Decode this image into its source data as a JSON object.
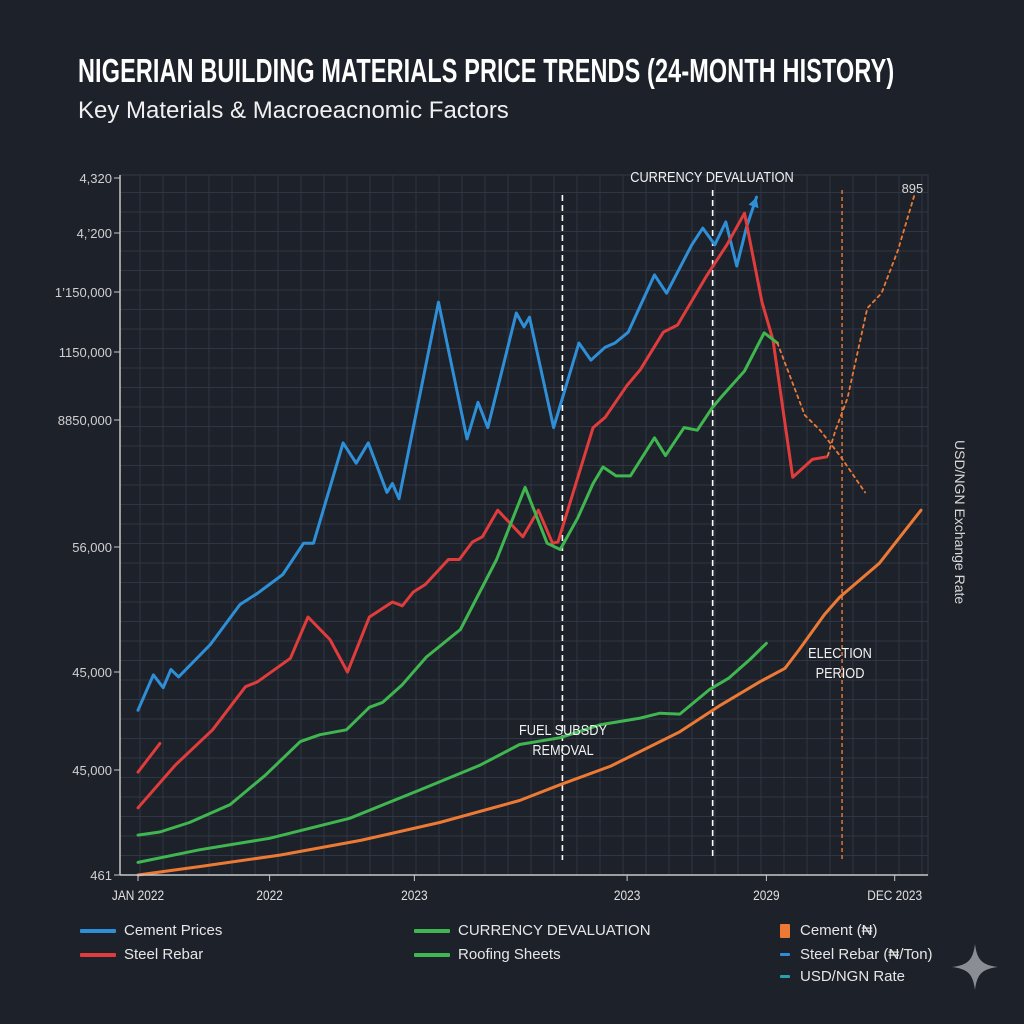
{
  "title": "NIGERIAN BUILDING MATERIALS PRICE TRENDS (24-MONTH HISTORY)",
  "subtitle": "Key Materials & Macroeacnomic Factors",
  "chart_data": {
    "type": "line",
    "title": "NIGERIAN BUILDING MATERIALS PRICE TRENDS (24-MONTH HISTORY)",
    "subtitle": "Key Materials & Macroeacnomic Factors",
    "y_axis_note": "y values are given as positions along the printed (non-monotonic) tick sequence: 0 = first tick, 1 = second tick, etc.",
    "y_ticks": [
      "461",
      "45,000",
      "45,000",
      "56,000",
      "8850,000",
      "1150,000",
      "1’150,000",
      "4,’200",
      "4,320"
    ],
    "right_ylabel": "USD/NGN Exchange Rate",
    "x_ticks": [
      {
        "label": "JAN 2022",
        "at": "2022-01-01"
      },
      {
        "label": "2022",
        "at": "2022-05-01"
      },
      {
        "label": "2023",
        "at": "2022-09-13"
      },
      {
        "label": "2023",
        "at": "2023-03-27"
      },
      {
        "label": "2029",
        "at": "2023-08-04"
      },
      {
        "label": "DEC 2023",
        "at": "2023-12-01"
      }
    ],
    "grid": true,
    "legend_placement": "bottom",
    "series": [
      {
        "name": "Cement Prices",
        "color": "#2f8fd6",
        "style": "solid",
        "arrow": true,
        "points": [
          [
            "2022-01-01",
            1.61
          ],
          [
            "2022-01-15",
            1.97
          ],
          [
            "2022-01-24",
            1.84
          ],
          [
            "2022-02-01",
            2.02
          ],
          [
            "2022-02-08",
            1.95
          ],
          [
            "2022-03-07",
            2.22
          ],
          [
            "2022-04-04",
            2.54
          ],
          [
            "2022-04-20",
            2.63
          ],
          [
            "2022-05-13",
            2.78
          ],
          [
            "2022-06-02",
            3.03
          ],
          [
            "2022-06-11",
            3.03
          ],
          [
            "2022-07-08",
            3.82
          ],
          [
            "2022-07-20",
            3.66
          ],
          [
            "2022-08-01",
            3.82
          ],
          [
            "2022-08-18",
            3.43
          ],
          [
            "2022-08-23",
            3.5
          ],
          [
            "2022-08-29",
            3.38
          ],
          [
            "2022-10-05",
            5.83
          ],
          [
            "2022-11-01",
            3.85
          ],
          [
            "2022-11-11",
            4.26
          ],
          [
            "2022-11-20",
            3.94
          ],
          [
            "2022-12-16",
            5.65
          ],
          [
            "2022-12-23",
            5.42
          ],
          [
            "2022-12-28",
            5.58
          ],
          [
            "2023-01-20",
            3.94
          ],
          [
            "2023-02-13",
            5.15
          ],
          [
            "2023-02-24",
            4.88
          ],
          [
            "2023-03-07",
            5.08
          ],
          [
            "2023-03-16",
            5.15
          ],
          [
            "2023-03-28",
            5.33
          ],
          [
            "2023-04-22",
            6.29
          ],
          [
            "2023-05-03",
            5.98
          ],
          [
            "2023-05-26",
            6.8
          ],
          [
            "2023-06-06",
            7.09
          ],
          [
            "2023-06-17",
            6.8
          ],
          [
            "2023-06-27",
            7.2
          ],
          [
            "2023-07-07",
            6.44
          ],
          [
            "2023-07-16",
            7.11
          ],
          [
            "2023-07-25",
            7.65
          ]
        ]
      },
      {
        "name": "Steel Rebar",
        "color": "#e03c3c",
        "style": "solid",
        "points": [
          [
            "2022-01-01",
            0.64
          ],
          [
            "2022-02-05",
            1.05
          ],
          [
            "2022-03-09",
            1.41
          ],
          [
            "2022-04-09",
            1.85
          ],
          [
            "2022-04-20",
            1.9
          ],
          [
            "2022-05-20",
            2.11
          ],
          [
            "2022-06-06",
            2.44
          ],
          [
            "2022-06-26",
            2.26
          ],
          [
            "2022-07-12",
            2.0
          ],
          [
            "2022-08-02",
            2.44
          ],
          [
            "2022-08-23",
            2.56
          ],
          [
            "2022-09-02",
            2.53
          ],
          [
            "2022-09-12",
            2.64
          ],
          [
            "2022-09-23",
            2.7
          ],
          [
            "2022-10-14",
            2.9
          ],
          [
            "2022-10-24",
            2.9
          ],
          [
            "2022-11-06",
            3.04
          ],
          [
            "2022-11-15",
            3.08
          ],
          [
            "2022-11-29",
            3.29
          ],
          [
            "2022-12-22",
            3.08
          ],
          [
            "2023-01-06",
            3.29
          ],
          [
            "2023-01-19",
            3.03
          ],
          [
            "2023-01-24",
            3.04
          ],
          [
            "2023-02-26",
            3.94
          ],
          [
            "2023-03-07",
            4.04
          ],
          [
            "2023-03-27",
            4.51
          ],
          [
            "2023-04-09",
            4.74
          ],
          [
            "2023-04-30",
            5.33
          ],
          [
            "2023-05-13",
            5.45
          ],
          [
            "2023-06-10",
            6.29
          ],
          [
            "2023-06-28",
            6.8
          ],
          [
            "2023-07-14",
            7.36
          ],
          [
            "2023-07-30",
            5.83
          ],
          [
            "2023-08-10",
            5.2
          ],
          [
            "2023-08-28",
            3.55
          ],
          [
            "2023-09-16",
            3.69
          ],
          [
            "2023-09-29",
            3.71
          ]
        ]
      },
      {
        "color": "#e03c3c",
        "style": "solid",
        "points": [
          [
            "2022-01-01",
            0.98
          ],
          [
            "2022-01-21",
            1.27
          ]
        ]
      },
      {
        "name": "CURRENCY DEVALUATION",
        "color": "#3fb650",
        "style": "solid",
        "points": [
          [
            "2022-01-01",
            0.38
          ],
          [
            "2022-01-21",
            0.41
          ],
          [
            "2022-02-18",
            0.5
          ],
          [
            "2022-03-25",
            0.67
          ],
          [
            "2022-04-27",
            0.95
          ],
          [
            "2022-05-29",
            1.29
          ],
          [
            "2022-06-17",
            1.36
          ],
          [
            "2022-07-11",
            1.41
          ],
          [
            "2022-08-02",
            1.64
          ],
          [
            "2022-08-14",
            1.69
          ],
          [
            "2022-09-02",
            1.87
          ],
          [
            "2022-09-24",
            2.12
          ],
          [
            "2022-10-25",
            2.34
          ],
          [
            "2022-11-28",
            2.9
          ],
          [
            "2022-12-24",
            3.47
          ],
          [
            "2023-01-14",
            3.03
          ],
          [
            "2023-01-26",
            2.98
          ],
          [
            "2023-02-12",
            3.23
          ],
          [
            "2023-02-26",
            3.5
          ],
          [
            "2023-03-05",
            3.63
          ],
          [
            "2023-03-17",
            3.56
          ],
          [
            "2023-03-30",
            3.56
          ],
          [
            "2023-04-22",
            3.86
          ],
          [
            "2023-05-02",
            3.72
          ],
          [
            "2023-05-19",
            3.94
          ],
          [
            "2023-05-31",
            3.92
          ],
          [
            "2023-06-15",
            4.19
          ],
          [
            "2023-06-23",
            4.34
          ],
          [
            "2023-07-14",
            4.72
          ],
          [
            "2023-08-02",
            5.32
          ],
          [
            "2023-08-14",
            5.15
          ]
        ]
      },
      {
        "name": "Roofing Sheets",
        "color": "#3fb650",
        "style": "solid",
        "points": [
          [
            "2022-01-01",
            0.12
          ],
          [
            "2022-02-27",
            0.24
          ],
          [
            "2022-05-01",
            0.35
          ],
          [
            "2022-07-14",
            0.54
          ],
          [
            "2022-09-18",
            0.81
          ],
          [
            "2022-11-13",
            1.05
          ],
          [
            "2022-12-19",
            1.26
          ],
          [
            "2023-01-26",
            1.33
          ],
          [
            "2023-03-02",
            1.46
          ],
          [
            "2023-04-09",
            1.53
          ],
          [
            "2023-04-27",
            1.58
          ],
          [
            "2023-05-15",
            1.57
          ],
          [
            "2023-06-12",
            1.82
          ],
          [
            "2023-06-30",
            1.94
          ],
          [
            "2023-07-19",
            2.1
          ],
          [
            "2023-08-04",
            2.23
          ]
        ]
      },
      {
        "name": "Cement (₦)",
        "color": "#ec7a35",
        "style": "solid",
        "points": [
          [
            "2022-01-01",
            0.0
          ],
          [
            "2022-02-27",
            0.08
          ],
          [
            "2022-05-11",
            0.19
          ],
          [
            "2022-07-24",
            0.33
          ],
          [
            "2022-10-06",
            0.5
          ],
          [
            "2022-12-19",
            0.71
          ],
          [
            "2023-01-26",
            0.86
          ],
          [
            "2023-03-12",
            1.04
          ],
          [
            "2023-05-15",
            1.39
          ],
          [
            "2023-06-22",
            1.66
          ],
          [
            "2023-07-28",
            1.9
          ],
          [
            "2023-08-21",
            2.03
          ],
          [
            "2023-09-04",
            2.18
          ],
          [
            "2023-09-27",
            2.46
          ],
          [
            "2023-10-11",
            2.6
          ],
          [
            "2023-11-17",
            2.87
          ],
          [
            "2023-12-25",
            3.29
          ]
        ]
      },
      {
        "color": "#ec7a35",
        "style": "dotted",
        "points": [
          [
            "2023-08-14",
            5.15
          ],
          [
            "2023-09-09",
            4.07
          ],
          [
            "2023-09-23",
            3.92
          ],
          [
            "2023-10-11",
            3.72
          ],
          [
            "2023-11-04",
            3.43
          ]
        ]
      },
      {
        "name": "USD/NGN Rate",
        "color": "#ec7a35",
        "style": "dotted",
        "end_label": "895",
        "points": [
          [
            "2023-09-30",
            3.72
          ],
          [
            "2023-10-07",
            3.92
          ],
          [
            "2023-10-18",
            4.32
          ],
          [
            "2023-11-06",
            5.73
          ],
          [
            "2023-11-19",
            5.98
          ],
          [
            "2023-12-04",
            6.71
          ],
          [
            "2023-12-19",
            7.69
          ]
        ]
      }
    ],
    "annotations": [
      {
        "text": "FUEL SUBSDY REMOVAL",
        "lines": [
          "FUEL SUBSDY",
          "REMOVAL"
        ],
        "at": "2023-01-28",
        "line_color": "#ffffff"
      },
      {
        "text": "CURRENCY DEVALUATION",
        "lines": [
          "CURRENCY DEVALUATION"
        ],
        "at": "2023-06-15",
        "line_color": "#ffffff"
      },
      {
        "text": "ELECTION PERIOD",
        "lines": [
          "ELECTION",
          "PERIOD"
        ],
        "at": "2023-10-13",
        "line_color": "#ec7a35"
      }
    ]
  },
  "legend": [
    {
      "label": "Cement Prices",
      "color": "#2f8fd6",
      "marker": "line"
    },
    {
      "label": "Steel Rebar",
      "color": "#e03c3c",
      "marker": "line"
    },
    {
      "label": "CURRENCY DEVALUATION",
      "color": "#3fb650",
      "marker": "line"
    },
    {
      "label": "Roofing Sheets",
      "color": "#3fb650",
      "marker": "line"
    },
    {
      "label": "Cement (₦)",
      "color": "#ec7a35",
      "marker": "square"
    },
    {
      "label": "Steel Rebar (₦/Ton)",
      "color": "#2f8fd6",
      "marker": "short-line"
    },
    {
      "label": "USD/NGN Rate",
      "color": "#2aa0a8",
      "marker": "short-line"
    }
  ],
  "icons": {
    "corner": "sparkle-icon"
  }
}
